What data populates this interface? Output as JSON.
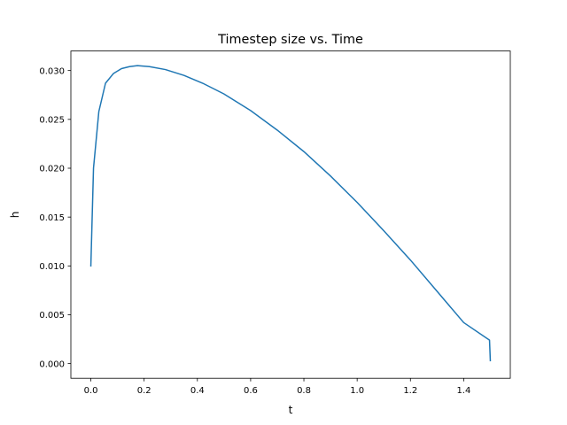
{
  "chart_data": {
    "type": "line",
    "title": "Timestep size vs. Time",
    "xlabel": "t",
    "ylabel": "h",
    "xlim": [
      -0.075,
      1.575
    ],
    "ylim": [
      -0.0015,
      0.032
    ],
    "xticks": [
      "0.0",
      "0.2",
      "0.4",
      "0.6",
      "0.8",
      "1.0",
      "1.2",
      "1.4"
    ],
    "yticks": [
      "0.000",
      "0.005",
      "0.010",
      "0.015",
      "0.020",
      "0.025",
      "0.030"
    ],
    "grid": false,
    "legend": "none",
    "series": [
      {
        "color": "#1f77b4",
        "x": [
          0.0,
          0.01,
          0.03,
          0.055,
          0.085,
          0.115,
          0.145,
          0.175,
          0.22,
          0.28,
          0.35,
          0.42,
          0.5,
          0.6,
          0.7,
          0.8,
          0.9,
          1.0,
          1.1,
          1.2,
          1.3,
          1.4,
          1.497,
          1.5
        ],
        "y": [
          0.01,
          0.02,
          0.0258,
          0.0287,
          0.0297,
          0.0302,
          0.0304,
          0.0305,
          0.0304,
          0.0301,
          0.0295,
          0.0287,
          0.0276,
          0.0259,
          0.0239,
          0.0217,
          0.0192,
          0.0165,
          0.0136,
          0.0106,
          0.0074,
          0.0042,
          0.0024,
          0.0003
        ]
      }
    ]
  }
}
